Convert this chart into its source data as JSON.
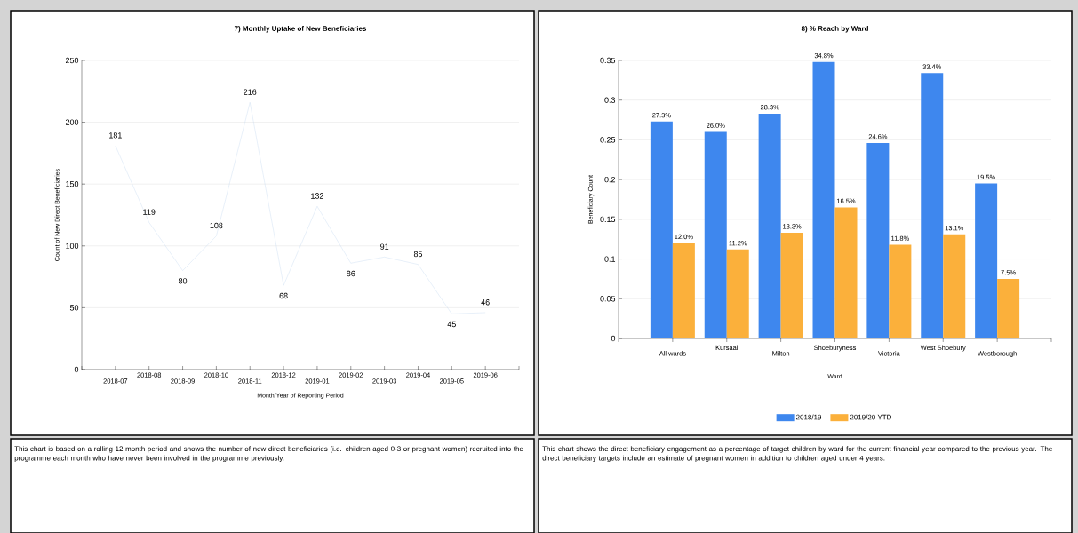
{
  "chart_data": [
    {
      "type": "line",
      "title": "7) Monthly Uptake of New Beneficiaries",
      "xlabel": "Month/Year of Reporting Period",
      "ylabel": "Count of New Direct Beneficiaries",
      "categories": [
        "2018-07",
        "2018-08",
        "2018-09",
        "2018-10",
        "2018-11",
        "2018-12",
        "2019-01",
        "2019-02",
        "2019-03",
        "2019-04",
        "2019-05",
        "2019-06"
      ],
      "series": [
        {
          "color": "#c6d9f0",
          "values": [
            181,
            119,
            80,
            108,
            216,
            68,
            132,
            86,
            91,
            85,
            45,
            46
          ]
        }
      ],
      "ylim": [
        0,
        250
      ],
      "yticks": [
        0,
        50,
        100,
        150,
        200,
        250
      ],
      "grid": "y",
      "data_labels": true,
      "marker": "none",
      "line_style": "solid",
      "annotations": [
        "This chart is based on a rolling 12 month period and shows the number of new direct beneficiaries (i.e. children aged 0-3 or pregnant women) recruited into the programme each month who have never been involved in the programme previously."
      ]
    },
    {
      "type": "bar",
      "title": "8) % Reach by Ward",
      "xlabel": "Ward",
      "ylabel": "Beneficiary Count",
      "categories": [
        "All wards",
        "Kursaal",
        "Milton",
        "Shoeburyness",
        "Victoria",
        "West Shoebury",
        "Westborough"
      ],
      "series": [
        {
          "name": "2018/19",
          "color": "#3e87ee",
          "values": [
            0.273,
            0.26,
            0.283,
            0.348,
            0.246,
            0.334,
            0.195
          ],
          "value_labels": [
            "27.3%",
            "26.0%",
            "28.3%",
            "34.8%",
            "24.6%",
            "33.4%",
            "19.5%"
          ]
        },
        {
          "name": "2019/20 YTD",
          "color": "#fbb03b",
          "values": [
            0.12,
            0.112,
            0.133,
            0.165,
            0.118,
            0.131,
            0.075
          ],
          "value_labels": [
            "12.0%",
            "11.2%",
            "13.3%",
            "16.5%",
            "11.8%",
            "13.1%",
            "7.5%"
          ]
        }
      ],
      "ylim": [
        0,
        0.35
      ],
      "yticks": [
        0,
        0.05,
        0.1,
        0.15,
        0.2,
        0.25,
        0.3,
        0.35
      ],
      "grid": "y",
      "legend": "bottom",
      "annotations": [
        "This chart shows the direct beneficiary engagement as a percentage of target children by ward for the current financial year compared to the previous year. The direct beneficiary targets include an estimate of pregnant women in addition to children aged under 4 years."
      ]
    }
  ]
}
